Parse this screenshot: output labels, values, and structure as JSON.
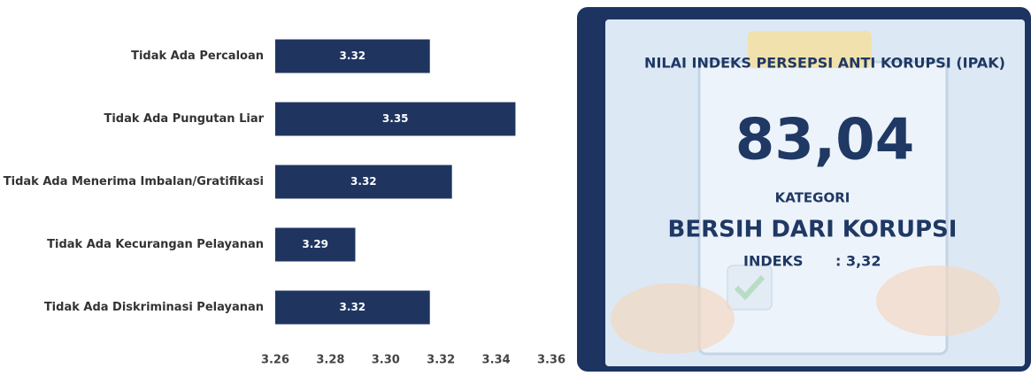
{
  "chart_data": {
    "type": "hbar",
    "categories": [
      "Tidak Ada Percaloan",
      "Tidak Ada Pungutan Liar",
      "Tidak Ada Menerima Imbalan/Gratifikasi",
      "Tidak Ada Kecurangan Pelayanan",
      "Tidak Ada Diskriminasi Pelayanan"
    ],
    "values": [
      3.316,
      3.347,
      3.324,
      3.289,
      3.316
    ],
    "value_labels": [
      "3.32",
      "3.35",
      "3.32",
      "3.29",
      "3.32"
    ],
    "color": "#1f3560",
    "xlim": [
      3.26,
      3.36
    ],
    "xticks": [
      3.26,
      3.28,
      {
        "value": 3.3,
        "label": "3.30"
      },
      3.32,
      3.34,
      3.36
    ]
  },
  "panel": {
    "title": "NILAI INDEKS PERSEPSI ANTI KORUPSI (IPAK)",
    "score": "83,04",
    "category_label": "KATEGORI",
    "category": "BERSIH DARI KORUPSI",
    "index_label": "INDEKS",
    "index_value": ": 3,32"
  }
}
